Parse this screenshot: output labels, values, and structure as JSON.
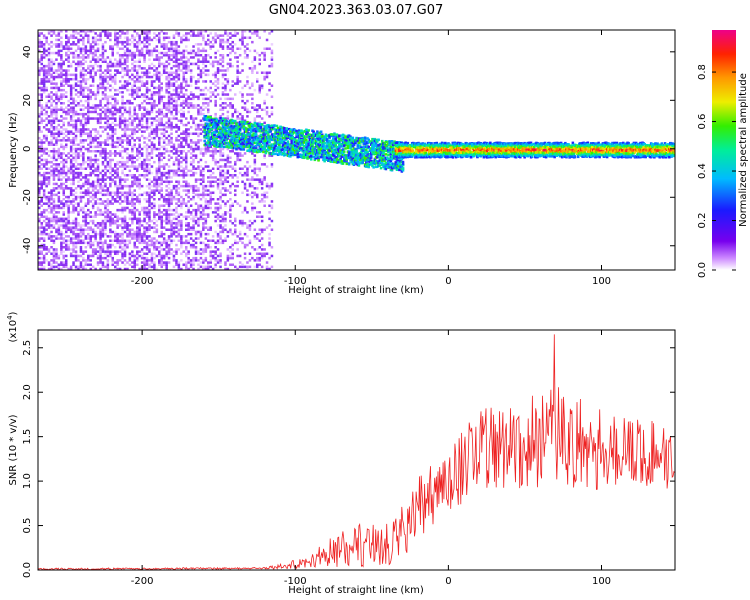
{
  "title": "GN04.2023.363.03.07.G07",
  "chart_data": [
    {
      "type": "heatmap",
      "xlabel": "Height of straight line (km)",
      "ylabel": "Frequency (Hz)",
      "xlim": [
        -268,
        148
      ],
      "ylim": [
        -50,
        49
      ],
      "xticks": [
        -200,
        -100,
        0,
        100
      ],
      "yticks": [
        -40,
        -20,
        0,
        20,
        40
      ],
      "colorbar": {
        "label": "Normalized spectral amplitude",
        "range": [
          0.0,
          0.97
        ],
        "ticks": [
          "0.0",
          "0.2",
          "0.4",
          "0.6",
          "0.8"
        ],
        "tick_values": [
          0.0,
          0.2,
          0.4,
          0.6,
          0.8
        ],
        "colormap": "rainbow: white -> purple -> blue -> cyan -> green -> yellow -> orange -> red -> magenta"
      },
      "features": [
        {
          "x_range": [
            -268,
            -115
          ],
          "y_range": [
            -50,
            49
          ],
          "description": "broadband noise, low amplitude",
          "amplitude": [
            0.02,
            0.15
          ]
        },
        {
          "x_range": [
            -160,
            -30
          ],
          "center_hz": [
            8,
            -3
          ],
          "width_hz": 12,
          "amplitude": [
            0.2,
            0.6
          ]
        },
        {
          "x_range": [
            -35,
            148
          ],
          "center_hz": 0,
          "width_hz": 6,
          "amplitude": [
            0.6,
            0.97
          ]
        }
      ]
    },
    {
      "type": "line",
      "xlabel": "Height of straight line (km)",
      "ylabel": "SNR (10 * v/v)",
      "y_scale_label": "(x10^4)",
      "xlim": [
        -268,
        148
      ],
      "ylim": [
        0,
        2.7
      ],
      "xticks": [
        -200,
        -100,
        0,
        100
      ],
      "yticks": [
        "0.0",
        "0.5",
        "1.0",
        "1.5",
        "2.0",
        "2.5"
      ],
      "ytick_values": [
        0,
        0.5,
        1.0,
        1.5,
        2.0,
        2.5
      ],
      "color": "#ee2222",
      "envelope": {
        "x": [
          -268,
          -120,
          -105,
          -95,
          -80,
          -60,
          -40,
          -28,
          -20,
          -10,
          0,
          10,
          20,
          40,
          60,
          70,
          90,
          110,
          130,
          148
        ],
        "mean": [
          0.01,
          0.02,
          0.05,
          0.08,
          0.18,
          0.28,
          0.3,
          0.45,
          0.7,
          0.85,
          1.0,
          1.2,
          1.35,
          1.4,
          1.45,
          1.5,
          1.4,
          1.35,
          1.3,
          1.3
        ],
        "amp": [
          0.01,
          0.01,
          0.04,
          0.06,
          0.15,
          0.25,
          0.25,
          0.3,
          0.35,
          0.35,
          0.35,
          0.45,
          0.45,
          0.5,
          0.55,
          0.6,
          0.5,
          0.45,
          0.4,
          0.4
        ]
      },
      "peak": {
        "x": 69,
        "y": 2.65
      }
    }
  ]
}
